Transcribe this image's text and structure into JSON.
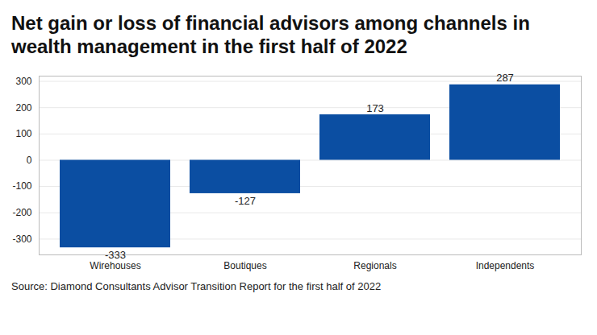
{
  "chart_data": {
    "type": "bar",
    "title": "Net gain or loss of financial advisors among channels in wealth management in the first half of 2022",
    "caption": "Source: Diamond Consultants Advisor Transition Report for the first half of 2022",
    "categories": [
      "Wirehouses",
      "Boutiques",
      "Regionals",
      "Independents"
    ],
    "values": [
      -333,
      -127,
      173,
      287
    ],
    "color": "#0b4ea2",
    "ylim": [
      -360,
      320
    ],
    "yticks": [
      -300,
      -200,
      -100,
      0,
      100,
      200,
      300
    ],
    "grid": true,
    "data_labels": true
  }
}
